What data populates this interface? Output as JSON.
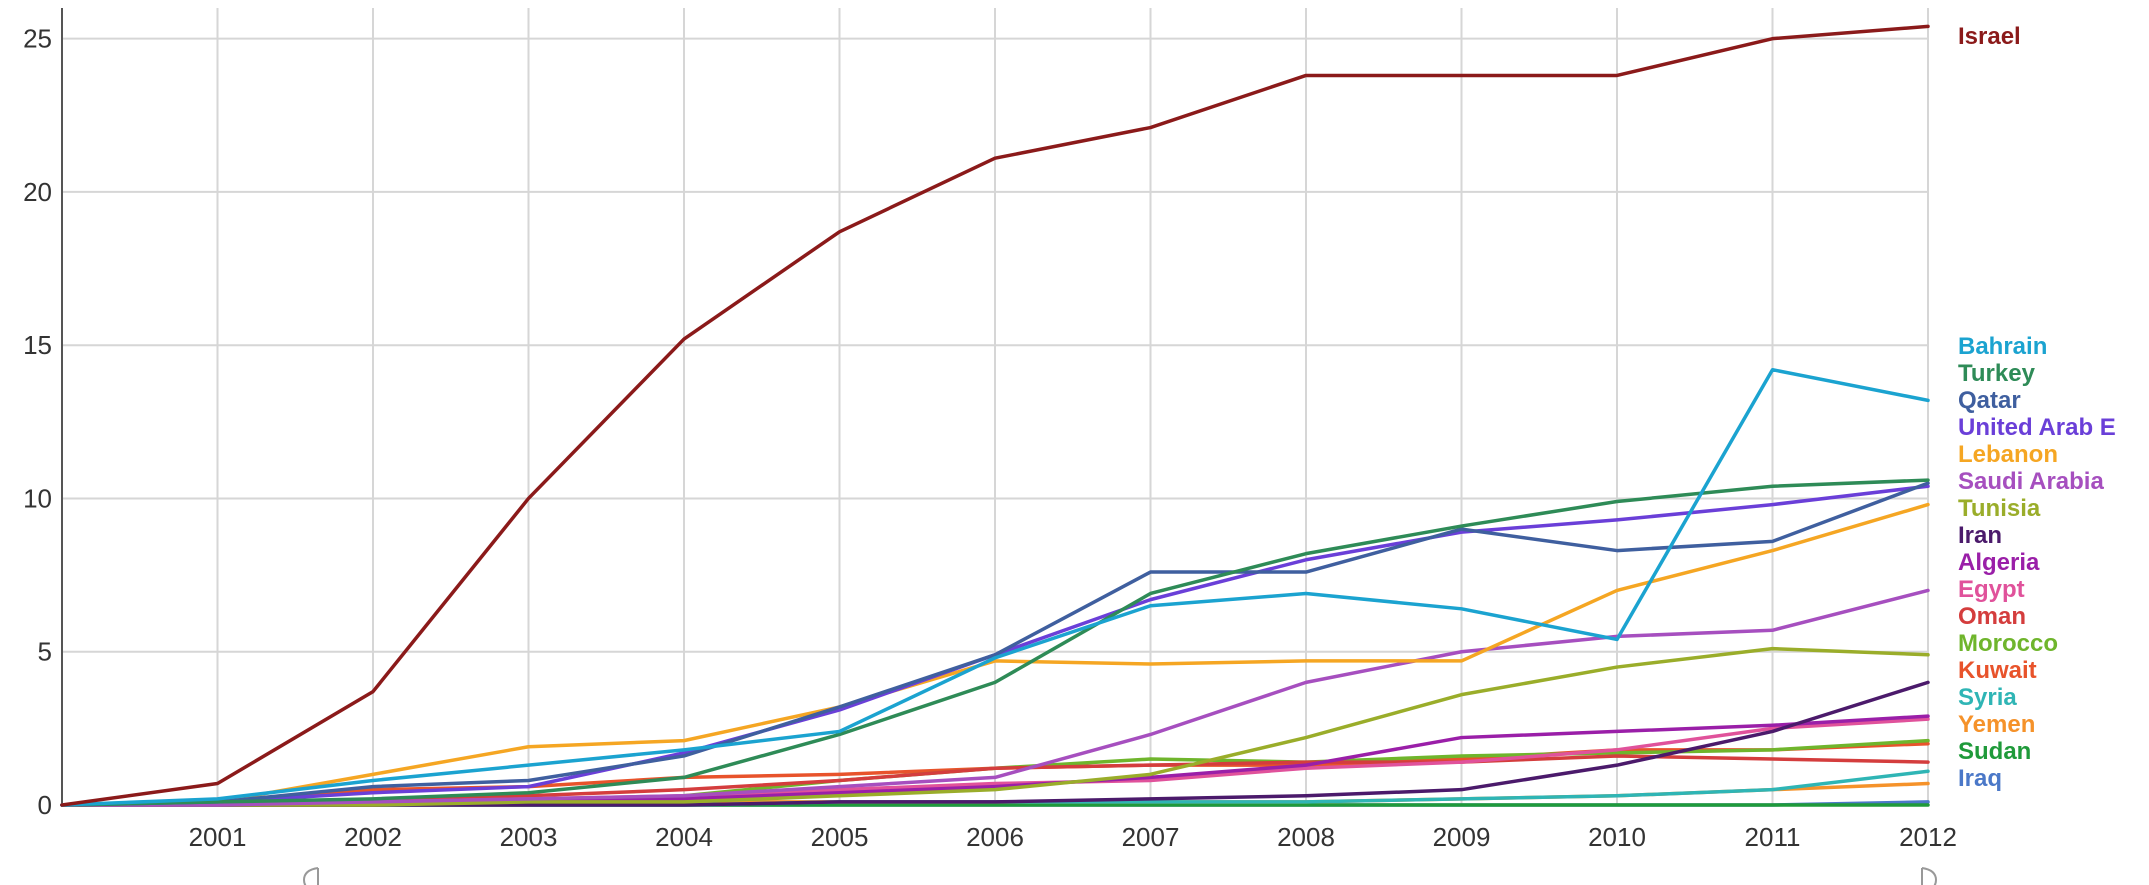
{
  "chart_data": {
    "type": "line",
    "title": "",
    "xlabel": "",
    "ylabel": "",
    "x": [
      2000,
      2001,
      2002,
      2003,
      2004,
      2005,
      2006,
      2007,
      2008,
      2009,
      2010,
      2011,
      2012
    ],
    "x_tick_labels": [
      "2001",
      "2002",
      "2003",
      "2004",
      "2005",
      "2006",
      "2007",
      "2008",
      "2009",
      "2010",
      "2011",
      "2012"
    ],
    "ylim": [
      0,
      26
    ],
    "y_ticks": [
      0,
      5,
      10,
      15,
      20,
      25
    ],
    "grid": true,
    "legend_placement": "right, labels at series ends",
    "series": [
      {
        "name": "Israel",
        "color": "#8b1a1a",
        "values": [
          0.0,
          0.7,
          3.7,
          10.0,
          15.2,
          18.7,
          21.1,
          22.1,
          23.8,
          23.8,
          23.8,
          25.0,
          25.4
        ]
      },
      {
        "name": "Bahrain",
        "color": "#1ba3d0",
        "values": [
          0.0,
          0.2,
          0.8,
          1.3,
          1.8,
          2.4,
          4.8,
          6.5,
          6.9,
          6.4,
          5.4,
          14.2,
          13.2
        ]
      },
      {
        "name": "Turkey",
        "color": "#2e8b57",
        "values": [
          0.0,
          0.1,
          0.2,
          0.4,
          0.9,
          2.3,
          4.0,
          6.9,
          8.2,
          9.1,
          9.9,
          10.4,
          10.6
        ]
      },
      {
        "name": "Qatar",
        "color": "#3f5f9f",
        "values": [
          0.0,
          0.1,
          0.6,
          0.8,
          1.6,
          3.2,
          4.9,
          7.6,
          7.6,
          9.0,
          8.3,
          8.6,
          10.5
        ]
      },
      {
        "name": "United Arab E",
        "color": "#6a3fd8",
        "values": [
          0.0,
          0.1,
          0.4,
          0.6,
          1.7,
          3.1,
          4.9,
          6.7,
          8.0,
          8.9,
          9.3,
          9.8,
          10.4
        ]
      },
      {
        "name": "Lebanon",
        "color": "#f5a623",
        "values": [
          0.0,
          0.1,
          1.0,
          1.9,
          2.1,
          3.2,
          4.7,
          4.6,
          4.7,
          4.7,
          7.0,
          8.3,
          9.8
        ]
      },
      {
        "name": "Saudi Arabia",
        "color": "#a64fbf",
        "values": [
          0.0,
          0.0,
          0.1,
          0.2,
          0.3,
          0.6,
          0.9,
          2.3,
          4.0,
          5.0,
          5.5,
          5.7,
          7.0
        ]
      },
      {
        "name": "Tunisia",
        "color": "#9aad2a",
        "values": [
          0.0,
          0.0,
          0.0,
          0.1,
          0.1,
          0.3,
          0.5,
          1.0,
          2.2,
          3.6,
          4.5,
          5.1,
          4.9
        ]
      },
      {
        "name": "Iran",
        "color": "#4b1a6b",
        "values": [
          0.0,
          0.0,
          0.0,
          0.0,
          0.0,
          0.1,
          0.1,
          0.2,
          0.3,
          0.5,
          1.3,
          2.4,
          4.0
        ]
      },
      {
        "name": "Algeria",
        "color": "#9a1fa8",
        "values": [
          0.0,
          0.0,
          0.0,
          0.1,
          0.2,
          0.4,
          0.6,
          0.9,
          1.3,
          2.2,
          2.4,
          2.6,
          2.9
        ]
      },
      {
        "name": "Egypt",
        "color": "#e0529b",
        "values": [
          0.0,
          0.0,
          0.1,
          0.2,
          0.3,
          0.5,
          0.7,
          0.8,
          1.2,
          1.4,
          1.8,
          2.5,
          2.8
        ]
      },
      {
        "name": "Oman",
        "color": "#d43d3d",
        "values": [
          0.0,
          0.0,
          0.1,
          0.3,
          0.5,
          0.8,
          1.2,
          1.3,
          1.4,
          1.4,
          1.6,
          1.5,
          1.4
        ]
      },
      {
        "name": "Morocco",
        "color": "#6fb52c",
        "values": [
          0.0,
          0.0,
          0.0,
          0.1,
          0.3,
          0.8,
          1.2,
          1.5,
          1.4,
          1.6,
          1.7,
          1.8,
          2.1
        ]
      },
      {
        "name": "Kuwait",
        "color": "#e8532b",
        "values": [
          0.0,
          0.0,
          0.5,
          0.6,
          0.9,
          1.0,
          1.2,
          1.3,
          1.3,
          1.5,
          1.8,
          1.8,
          2.0
        ]
      },
      {
        "name": "Syria",
        "color": "#2fb5b5",
        "values": [
          0.0,
          0.0,
          0.0,
          0.0,
          0.0,
          0.1,
          0.1,
          0.1,
          0.1,
          0.2,
          0.3,
          0.5,
          1.1
        ]
      },
      {
        "name": "Yemen",
        "color": "#f5922a",
        "values": [
          0.0,
          0.0,
          0.0,
          0.0,
          0.1,
          0.1,
          0.1,
          0.1,
          0.1,
          0.2,
          0.3,
          0.5,
          0.7
        ]
      },
      {
        "name": "Sudan",
        "color": "#1f9a3a",
        "values": [
          0.0,
          0.0,
          0.0,
          0.0,
          0.0,
          0.0,
          0.0,
          0.0,
          0.0,
          0.0,
          0.0,
          0.0,
          0.0
        ]
      },
      {
        "name": "Iraq",
        "color": "#4b78c8",
        "values": [
          0.0,
          0.0,
          0.0,
          0.0,
          0.0,
          0.0,
          0.0,
          0.0,
          0.0,
          0.0,
          0.0,
          0.0,
          0.1
        ]
      }
    ]
  }
}
